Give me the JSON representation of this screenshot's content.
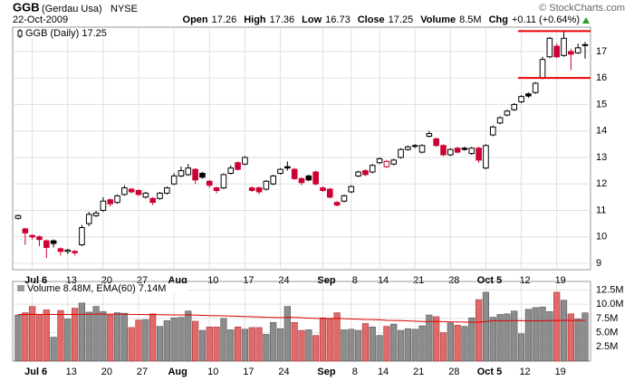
{
  "header": {
    "symbol": "GGB",
    "name": "(Gerdau Usa)",
    "exchange": "NYSE",
    "date": "22-Oct-2009",
    "credit": "© StockCharts.com",
    "quote": [
      {
        "label": "Open",
        "value": 17.26
      },
      {
        "label": "High",
        "value": 17.36
      },
      {
        "label": "Low",
        "value": 16.73
      },
      {
        "label": "Close",
        "value": 17.25
      },
      {
        "label": "Volume",
        "value": "8.5M"
      },
      {
        "label": "Chg",
        "value": "+0.11 (+0.64%)"
      }
    ]
  },
  "chart_data": [
    {
      "type": "candlestick",
      "legend": "GGB (Daily) 17.25",
      "grid": true,
      "up_color": "#000000",
      "down_color": "#cc0033",
      "line_color": "#ee0000",
      "open": [
        10.7,
        10.3,
        10.05,
        10.0,
        9.85,
        9.85,
        9.55,
        9.45,
        9.45,
        9.7,
        10.5,
        10.8,
        11.0,
        11.4,
        11.3,
        11.6,
        11.8,
        11.75,
        11.5,
        11.45,
        11.45,
        11.65,
        12.0,
        12.3,
        12.35,
        12.55,
        12.4,
        12.1,
        11.85,
        11.85,
        12.4,
        12.8,
        12.75,
        11.85,
        11.85,
        11.8,
        12.0,
        12.4,
        12.65,
        12.55,
        12.2,
        12.3,
        12.45,
        11.85,
        11.8,
        11.3,
        11.35,
        11.7,
        12.3,
        12.5,
        12.45,
        12.8,
        12.65,
        12.75,
        13.0,
        13.3,
        13.45,
        13.2,
        13.8,
        13.7,
        13.45,
        13.1,
        13.35,
        13.35,
        13.15,
        13.35,
        12.6,
        13.85,
        14.3,
        14.6,
        14.8,
        15.1,
        15.4,
        15.45,
        16.0,
        16.8,
        17.2,
        16.85,
        17.0,
        16.95,
        17.26
      ],
      "high": [
        10.85,
        10.35,
        10.1,
        10.05,
        9.9,
        9.9,
        9.6,
        9.55,
        9.5,
        10.45,
        10.95,
        10.98,
        11.5,
        11.45,
        11.6,
        11.95,
        11.85,
        11.8,
        11.7,
        11.5,
        11.7,
        11.9,
        12.4,
        12.65,
        12.75,
        12.6,
        12.45,
        12.15,
        11.9,
        12.4,
        12.7,
        12.85,
        13.05,
        11.9,
        11.9,
        12.15,
        12.35,
        12.6,
        12.85,
        12.6,
        12.25,
        12.35,
        12.5,
        11.9,
        11.85,
        11.35,
        11.6,
        11.95,
        12.5,
        12.55,
        12.75,
        13.0,
        12.9,
        12.95,
        13.35,
        13.45,
        13.5,
        13.5,
        14.0,
        13.75,
        13.5,
        13.35,
        13.4,
        13.4,
        13.4,
        13.4,
        13.5,
        14.2,
        14.55,
        14.8,
        15.05,
        15.35,
        15.45,
        15.85,
        16.8,
        17.55,
        17.3,
        17.75,
        17.1,
        17.3,
        17.36
      ],
      "low": [
        10.65,
        9.7,
        9.9,
        9.65,
        9.2,
        9.6,
        9.3,
        9.35,
        9.3,
        9.65,
        10.4,
        10.75,
        10.95,
        11.15,
        11.25,
        11.55,
        11.65,
        11.55,
        11.45,
        11.2,
        11.4,
        11.6,
        11.95,
        12.25,
        12.3,
        12.0,
        12.2,
        11.85,
        11.65,
        11.8,
        12.35,
        12.5,
        12.7,
        11.7,
        11.6,
        11.75,
        11.95,
        12.35,
        12.5,
        12.15,
        11.95,
        12.1,
        11.95,
        11.7,
        11.45,
        11.15,
        11.3,
        11.65,
        12.25,
        12.3,
        12.4,
        12.75,
        12.6,
        12.7,
        12.95,
        13.25,
        13.35,
        13.15,
        13.75,
        13.4,
        13.05,
        13.05,
        13.15,
        13.25,
        13.1,
        12.8,
        12.55,
        13.8,
        14.25,
        14.55,
        14.75,
        15.05,
        15.25,
        15.4,
        15.95,
        16.75,
        16.75,
        16.8,
        16.3,
        16.9,
        16.73
      ],
      "close": [
        10.8,
        10.15,
        10.0,
        9.9,
        9.6,
        9.75,
        9.45,
        9.5,
        9.4,
        10.35,
        10.85,
        10.9,
        11.35,
        11.25,
        11.55,
        11.85,
        11.7,
        11.6,
        11.65,
        11.3,
        11.65,
        11.85,
        12.3,
        12.5,
        12.6,
        12.15,
        12.25,
        11.95,
        11.75,
        12.35,
        12.6,
        12.55,
        13.0,
        11.75,
        11.7,
        12.1,
        12.3,
        12.55,
        12.6,
        12.2,
        12.05,
        12.15,
        12.0,
        11.75,
        11.5,
        11.2,
        11.55,
        11.9,
        12.45,
        12.35,
        12.7,
        12.95,
        12.85,
        12.9,
        13.3,
        13.4,
        13.42,
        13.45,
        13.9,
        13.45,
        13.1,
        13.3,
        13.2,
        13.3,
        13.35,
        12.9,
        13.45,
        14.15,
        14.5,
        14.75,
        15.0,
        15.3,
        15.32,
        15.8,
        16.7,
        17.5,
        16.8,
        17.5,
        16.9,
        17.14,
        17.25
      ],
      "hlines": [
        17.77,
        16.0
      ],
      "ylim": [
        8.76,
        17.92
      ],
      "yticks": [
        9,
        10,
        11,
        12,
        13,
        14,
        15,
        16,
        17
      ],
      "xticks": [
        {
          "value": 2,
          "label": "Jul 6"
        },
        {
          "value": 7,
          "label": "13"
        },
        {
          "value": 12,
          "label": "20"
        },
        {
          "value": 17,
          "label": "27"
        },
        {
          "value": 22,
          "label": "Aug"
        },
        {
          "value": 27,
          "label": "10"
        },
        {
          "value": 32,
          "label": "17"
        },
        {
          "value": 37,
          "label": "24"
        },
        {
          "value": 43,
          "label": "Sep"
        },
        {
          "value": 47,
          "label": "8"
        },
        {
          "value": 51,
          "label": "14"
        },
        {
          "value": 56,
          "label": "21"
        },
        {
          "value": 61,
          "label": "28"
        },
        {
          "value": 66,
          "label": "Oct 5"
        },
        {
          "value": 71,
          "label": "12"
        },
        {
          "value": 76,
          "label": "19"
        }
      ]
    },
    {
      "type": "bar",
      "legend": "Volume 8.48M, EMA(60) 7.14M",
      "grid": true,
      "up_color": "#8c8c8c",
      "down_color": "#e06a6a",
      "ema_color": "#dd0000",
      "values": [
        8.1,
        8.5,
        9.6,
        8.2,
        9.0,
        4.2,
        8.9,
        7.4,
        9.3,
        10.2,
        8.6,
        9.6,
        8.7,
        8.1,
        8.5,
        8.4,
        5.9,
        7.2,
        7.3,
        8.3,
        6.1,
        7.1,
        7.6,
        7.7,
        8.8,
        7.0,
        5.4,
        6.0,
        6.0,
        7.5,
        5.5,
        6.0,
        5.6,
        5.9,
        5.9,
        4.7,
        6.8,
        5.7,
        9.6,
        6.8,
        5.4,
        5.5,
        4.5,
        7.6,
        7.4,
        8.5,
        5.5,
        5.6,
        5.4,
        6.6,
        6.0,
        4.5,
        6.1,
        6.5,
        5.4,
        5.7,
        5.6,
        6.2,
        8.1,
        7.8,
        5.0,
        6.7,
        6.3,
        6.1,
        7.6,
        10.8,
        12.1,
        7.7,
        8.2,
        8.3,
        8.8,
        4.8,
        9.1,
        9.4,
        9.5,
        8.7,
        12.1,
        10.7,
        8.3,
        7.4,
        8.48
      ],
      "ema": [
        8.2,
        8.2,
        8.21,
        8.21,
        8.22,
        8.19,
        8.2,
        8.19,
        8.2,
        8.23,
        8.23,
        8.25,
        8.25,
        8.25,
        8.25,
        8.25,
        8.21,
        8.2,
        8.18,
        8.19,
        8.15,
        8.13,
        8.12,
        8.11,
        8.12,
        8.09,
        8.04,
        8.0,
        7.97,
        7.96,
        7.91,
        7.88,
        7.83,
        7.79,
        7.76,
        7.69,
        7.67,
        7.63,
        7.69,
        7.67,
        7.62,
        7.57,
        7.49,
        7.49,
        7.49,
        7.52,
        7.45,
        7.41,
        7.36,
        7.31,
        7.29,
        7.25,
        7.16,
        7.13,
        7.11,
        7.05,
        7.01,
        6.97,
        6.94,
        6.98,
        6.95,
        6.89,
        6.88,
        6.86,
        6.83,
        6.84,
        6.96,
        7.1,
        7.1,
        7.1,
        7.1,
        7.12,
        7.05,
        7.08,
        7.1,
        7.13,
        7.12,
        7.15,
        7.14,
        7.13,
        7.14
      ],
      "ylim": [
        0,
        14
      ],
      "yticks": [
        {
          "value": 2.5,
          "label": "2.5M"
        },
        {
          "value": 5,
          "label": "5.0M"
        },
        {
          "value": 7.5,
          "label": "7.5M"
        },
        {
          "value": 10,
          "label": "10.0M"
        },
        {
          "value": 12.5,
          "label": "12.5M"
        }
      ],
      "xticks": [
        {
          "value": 2,
          "label": "Jul 6"
        },
        {
          "value": 7,
          "label": "13"
        },
        {
          "value": 12,
          "label": "20"
        },
        {
          "value": 17,
          "label": "27"
        },
        {
          "value": 22,
          "label": "Aug"
        },
        {
          "value": 27,
          "label": "10"
        },
        {
          "value": 32,
          "label": "17"
        },
        {
          "value": 37,
          "label": "24"
        },
        {
          "value": 43,
          "label": "Sep"
        },
        {
          "value": 47,
          "label": "8"
        },
        {
          "value": 51,
          "label": "14"
        },
        {
          "value": 56,
          "label": "21"
        },
        {
          "value": 61,
          "label": "28"
        },
        {
          "value": 66,
          "label": "Oct 5"
        },
        {
          "value": 71,
          "label": "12"
        },
        {
          "value": 76,
          "label": "19"
        }
      ]
    }
  ]
}
